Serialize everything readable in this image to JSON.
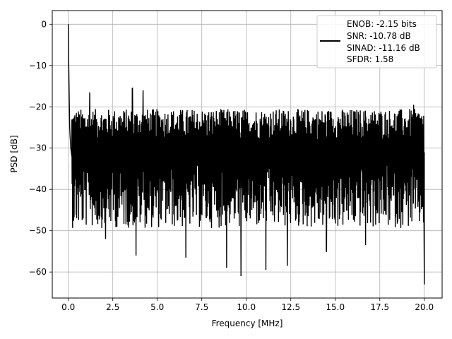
{
  "chart_data": {
    "type": "line",
    "title": "",
    "xlabel": "Frequency [MHz]",
    "ylabel": "PSD [dB]",
    "xlim": [
      -0.9,
      21.0
    ],
    "ylim": [
      -66.3,
      3.3
    ],
    "xticks": [
      0.0,
      2.5,
      5.0,
      7.5,
      10.0,
      12.5,
      15.0,
      17.5,
      20.0
    ],
    "xtick_labels": [
      "0.0",
      "2.5",
      "5.0",
      "7.5",
      "10.0",
      "12.5",
      "15.0",
      "17.5",
      "20.0"
    ],
    "yticks": [
      0,
      -10,
      -20,
      -30,
      -40,
      -50,
      -60
    ],
    "ytick_labels": [
      "0",
      "−10",
      "−20",
      "−30",
      "−40",
      "−50",
      "−60"
    ],
    "grid": true,
    "legend_position": "top-right",
    "series": [
      {
        "name": "",
        "color": "#000000",
        "x": [
          0.0,
          0.02,
          0.04,
          0.06,
          0.08,
          0.1,
          0.14,
          0.2,
          0.3,
          0.45,
          0.6,
          0.8,
          1.0,
          1.5,
          2.1,
          2.5,
          3.0,
          3.6,
          4.0,
          5.0,
          6.0,
          6.6,
          7.0,
          8.0,
          8.9,
          9.0,
          9.7,
          10.0,
          11.0,
          11.1,
          12.0,
          12.3,
          13.0,
          14.0,
          14.5,
          15.0,
          16.0,
          17.0,
          18.0,
          18.9,
          19.5,
          19.98,
          20.0
        ],
        "y": [
          0.0,
          -8.0,
          -14.0,
          -20.0,
          -25.0,
          -27.0,
          -30.0,
          -32.0,
          -38.0,
          -31.0,
          -35.0,
          -30.0,
          -29.0,
          -30.0,
          -33.0,
          -29.0,
          -30.0,
          -28.0,
          -30.0,
          -29.0,
          -30.0,
          -31.0,
          -30.0,
          -30.0,
          -29.0,
          -30.0,
          -31.0,
          -30.0,
          -30.0,
          -31.0,
          -29.0,
          -30.0,
          -30.0,
          -31.0,
          -30.0,
          -31.0,
          -30.0,
          -30.0,
          -31.0,
          -30.0,
          -31.0,
          -63.0,
          -31.0
        ]
      }
    ],
    "noise": {
      "baseline_db": -30,
      "upper_envelope_db": -20.5,
      "lower_typical_db": -44,
      "deep_dips": [
        {
          "x": 2.1,
          "y": -52.0
        },
        {
          "x": 3.8,
          "y": -56.0
        },
        {
          "x": 6.6,
          "y": -56.5
        },
        {
          "x": 8.9,
          "y": -59.0
        },
        {
          "x": 9.7,
          "y": -61.0
        },
        {
          "x": 11.1,
          "y": -59.5
        },
        {
          "x": 12.3,
          "y": -58.5
        },
        {
          "x": 14.5,
          "y": -55.0
        },
        {
          "x": 16.7,
          "y": -53.5
        },
        {
          "x": 20.0,
          "y": -63.0
        }
      ],
      "upper_spikes": [
        {
          "x": 3.6,
          "y": -15.5
        },
        {
          "x": 4.2,
          "y": -16.0
        },
        {
          "x": 1.2,
          "y": -16.5
        },
        {
          "x": 19.4,
          "y": -19.5
        }
      ]
    }
  },
  "legend": {
    "enob": "ENOB: -2.15 bits",
    "snr": "SNR: -10.78 dB",
    "sinad": "SINAD: -11.16 dB",
    "sfdr": "SFDR: 1.58"
  }
}
